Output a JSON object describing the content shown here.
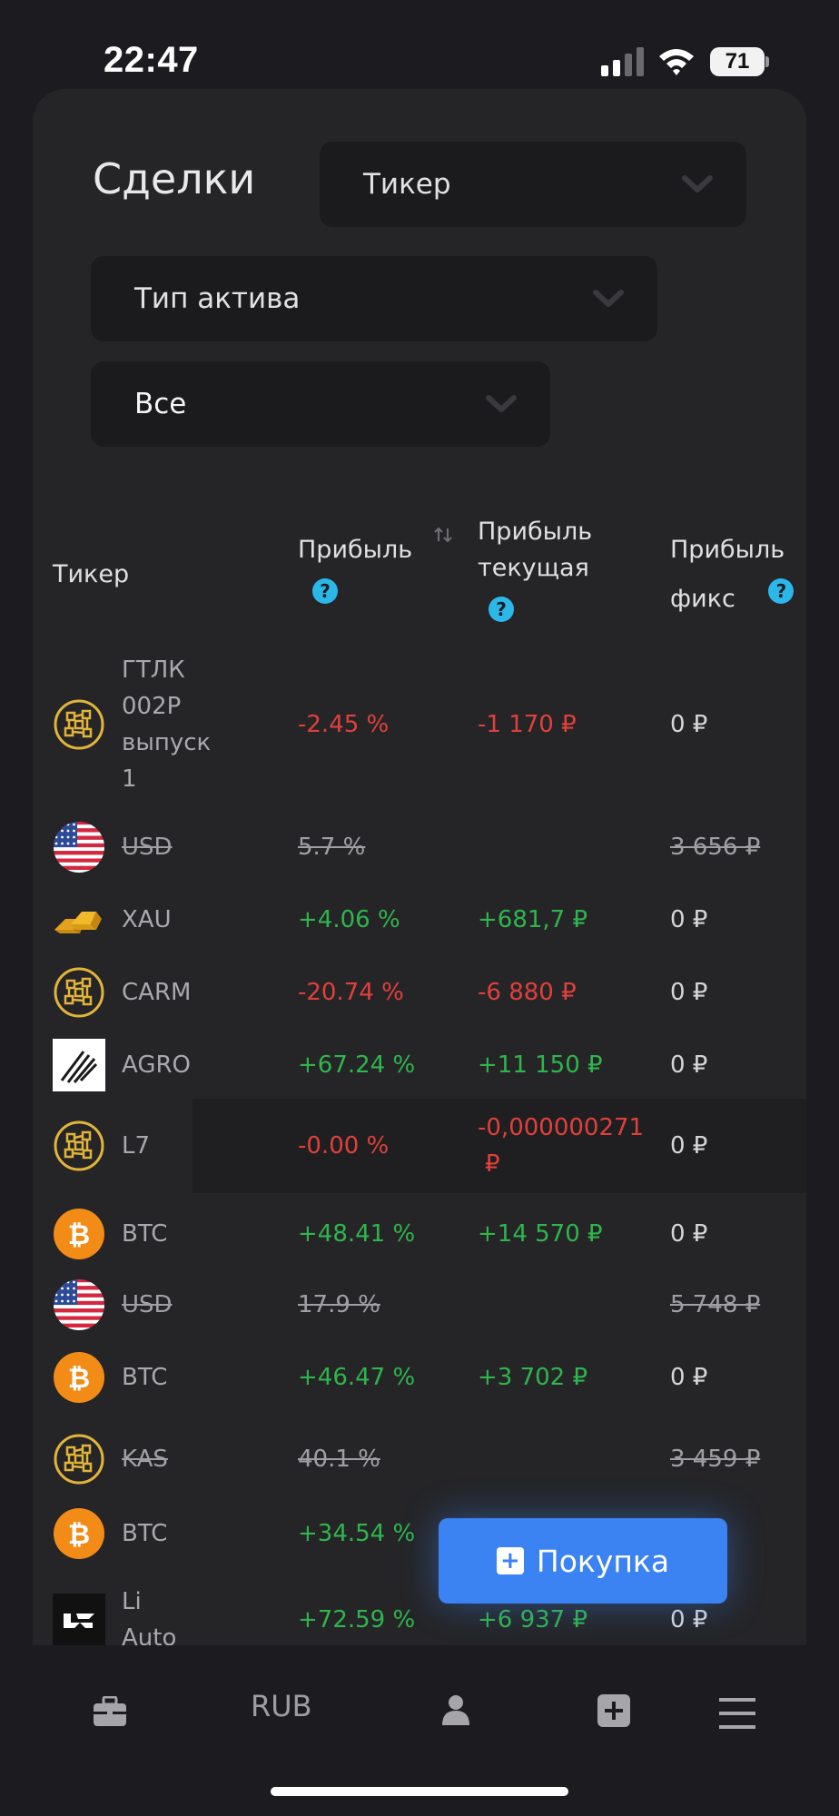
{
  "status": {
    "time": "22:47",
    "battery": "71"
  },
  "page": {
    "title": "Сделки"
  },
  "filters": {
    "ticker_placeholder": "Тикер",
    "asset_type_placeholder": "Тип актива",
    "scope_value": "Все"
  },
  "table": {
    "headers": {
      "ticker": "Тикер",
      "profit": "Прибыль",
      "profit_current_1": "Прибыль",
      "profit_current_2": "текущая",
      "profit_fixed_1": "Прибыль",
      "profit_fixed_2": "фикс",
      "help_glyph": "?"
    },
    "rows": [
      {
        "name_lines": [
          "ГТЛК",
          "002P",
          "выпуск",
          "1"
        ],
        "icon": "crypto-network-icon",
        "profit": "-2.45 %",
        "current": "-1 170 ₽",
        "fixed": "0 ₽",
        "state": "loss"
      },
      {
        "name": "USD",
        "icon": "us-flag-icon",
        "profit": "5.7 %",
        "current": "",
        "fixed": "3 656 ₽",
        "state": "closed"
      },
      {
        "name": "XAU",
        "icon": "gold-bars-icon",
        "profit": "+4.06 %",
        "current": "+681,7 ₽",
        "fixed": "0 ₽",
        "state": "gain"
      },
      {
        "name": "CARM",
        "icon": "crypto-network-icon",
        "profit": "-20.74 %",
        "current": "-6 880 ₽",
        "fixed": "0 ₽",
        "state": "loss"
      },
      {
        "name": "AGRO",
        "icon": "agro-logo-icon",
        "profit": "+67.24 %",
        "current": "+11 150 ₽",
        "fixed": "0 ₽",
        "state": "gain"
      },
      {
        "name": "L7",
        "icon": "crypto-network-icon",
        "profit": "-0.00 %",
        "current_1": "-0,000000271",
        "current_2": "₽",
        "fixed": "0 ₽",
        "state": "loss"
      },
      {
        "name": "BTC",
        "icon": "bitcoin-icon",
        "profit": "+48.41 %",
        "current": "+14 570 ₽",
        "fixed": "0 ₽",
        "state": "gain"
      },
      {
        "name": "USD",
        "icon": "us-flag-icon",
        "profit": "17.9 %",
        "current": "",
        "fixed": "5 748 ₽",
        "state": "closed"
      },
      {
        "name": "BTC",
        "icon": "bitcoin-icon",
        "profit": "+46.47 %",
        "current": "+3 702 ₽",
        "fixed": "0 ₽",
        "state": "gain"
      },
      {
        "name": "KAS",
        "icon": "crypto-network-icon",
        "profit": "40.1 %",
        "current": "",
        "fixed": "3 459 ₽",
        "state": "closed"
      },
      {
        "name": "BTC",
        "icon": "bitcoin-icon",
        "profit": "+34.54 %",
        "current": "",
        "fixed": "",
        "state": "gain"
      },
      {
        "name_lines": [
          "Li",
          "Auto"
        ],
        "icon": "li-auto-logo-icon",
        "profit": "+72.59 %",
        "current": "+6 937 ₽",
        "fixed": "0 ₽",
        "state": "gain"
      }
    ]
  },
  "buy_button": {
    "label": "Покупка",
    "plus": "+"
  },
  "bottom_nav": {
    "currency": "RUB"
  },
  "colors": {
    "loss": "#e0403a",
    "gain": "#2fb54c",
    "accent": "#3b82f2",
    "help": "#2bb8e8"
  }
}
